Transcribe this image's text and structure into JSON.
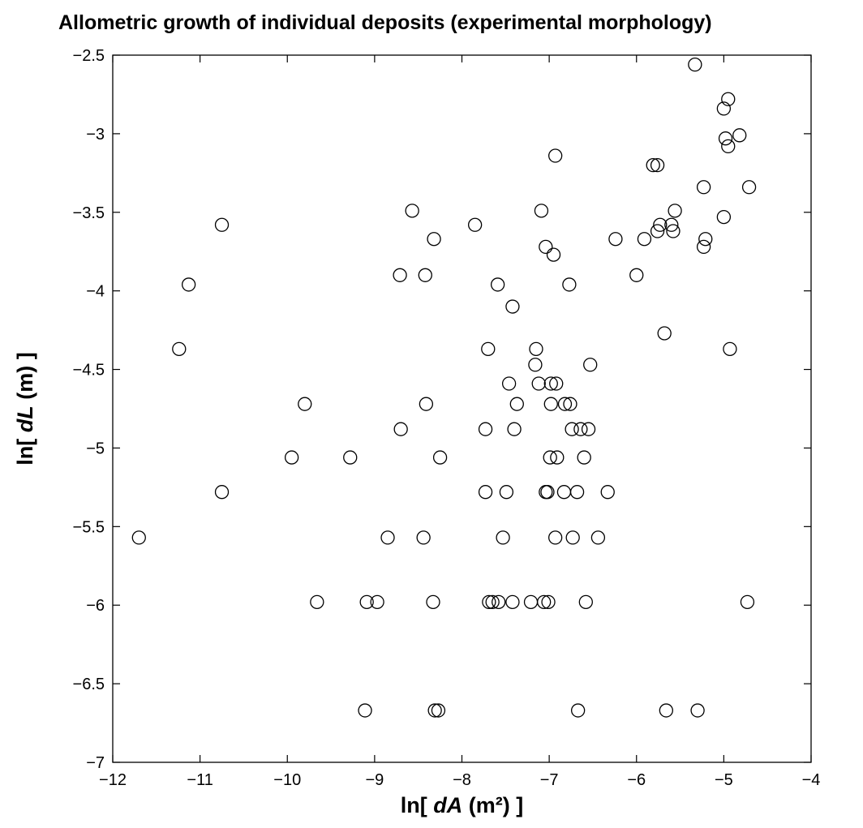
{
  "chart_data": {
    "type": "scatter",
    "title": "Allometric growth of individual deposits (experimental morphology)",
    "xlabel": {
      "prefix": "ln[ ",
      "var": "dA",
      "suffix": " (m²) ]"
    },
    "ylabel": {
      "prefix": "ln[ ",
      "var": "dL",
      "suffix": " (m) ]"
    },
    "xlim": [
      -12,
      -4
    ],
    "ylim": [
      -7,
      -2.5
    ],
    "xticks": [
      -12,
      -11,
      -10,
      -9,
      -8,
      -7,
      -6,
      -5,
      -4
    ],
    "xtick_labels": [
      "−12",
      "−11",
      "−10",
      "−9",
      "−8",
      "−7",
      "−6",
      "−5",
      "−4"
    ],
    "yticks": [
      -7,
      -6.5,
      -6,
      -5.5,
      -5,
      -4.5,
      -4,
      -3.5,
      -3,
      -2.5
    ],
    "ytick_labels": [
      "−7",
      "−6.5",
      "−6",
      "−5.5",
      "−5",
      "−4.5",
      "−4",
      "−3.5",
      "−3",
      "−2.5"
    ],
    "grid": false,
    "marker": "open-circle",
    "marker_color": "#000000",
    "points": [
      [
        -5.33,
        -2.56
      ],
      [
        -4.95,
        -2.78
      ],
      [
        -5.0,
        -2.84
      ],
      [
        -4.82,
        -3.01
      ],
      [
        -4.98,
        -3.03
      ],
      [
        -4.95,
        -3.08
      ],
      [
        -6.93,
        -3.14
      ],
      [
        -5.81,
        -3.2
      ],
      [
        -5.76,
        -3.2
      ],
      [
        -5.23,
        -3.34
      ],
      [
        -4.71,
        -3.34
      ],
      [
        -8.57,
        -3.49
      ],
      [
        -7.09,
        -3.49
      ],
      [
        -5.56,
        -3.49
      ],
      [
        -5.0,
        -3.53
      ],
      [
        -10.75,
        -3.58
      ],
      [
        -7.85,
        -3.58
      ],
      [
        -5.73,
        -3.58
      ],
      [
        -5.6,
        -3.58
      ],
      [
        -5.76,
        -3.62
      ],
      [
        -5.58,
        -3.62
      ],
      [
        -8.32,
        -3.67
      ],
      [
        -6.24,
        -3.67
      ],
      [
        -5.91,
        -3.67
      ],
      [
        -5.21,
        -3.67
      ],
      [
        -7.04,
        -3.72
      ],
      [
        -5.23,
        -3.72
      ],
      [
        -6.95,
        -3.77
      ],
      [
        -8.71,
        -3.9
      ],
      [
        -8.42,
        -3.9
      ],
      [
        -6.0,
        -3.9
      ],
      [
        -11.13,
        -3.96
      ],
      [
        -7.59,
        -3.96
      ],
      [
        -6.77,
        -3.96
      ],
      [
        -7.42,
        -4.1
      ],
      [
        -5.68,
        -4.27
      ],
      [
        -11.24,
        -4.37
      ],
      [
        -7.7,
        -4.37
      ],
      [
        -7.15,
        -4.37
      ],
      [
        -4.93,
        -4.37
      ],
      [
        -7.16,
        -4.47
      ],
      [
        -6.53,
        -4.47
      ],
      [
        -7.12,
        -4.59
      ],
      [
        -6.98,
        -4.59
      ],
      [
        -6.92,
        -4.59
      ],
      [
        -7.46,
        -4.59
      ],
      [
        -9.8,
        -4.72
      ],
      [
        -8.41,
        -4.72
      ],
      [
        -7.37,
        -4.72
      ],
      [
        -6.98,
        -4.72
      ],
      [
        -6.82,
        -4.72
      ],
      [
        -6.76,
        -4.72
      ],
      [
        -8.7,
        -4.88
      ],
      [
        -7.73,
        -4.88
      ],
      [
        -7.4,
        -4.88
      ],
      [
        -6.74,
        -4.88
      ],
      [
        -6.64,
        -4.88
      ],
      [
        -6.55,
        -4.88
      ],
      [
        -9.95,
        -5.06
      ],
      [
        -9.28,
        -5.06
      ],
      [
        -8.25,
        -5.06
      ],
      [
        -6.99,
        -5.06
      ],
      [
        -6.91,
        -5.06
      ],
      [
        -6.6,
        -5.06
      ],
      [
        -10.75,
        -5.28
      ],
      [
        -7.73,
        -5.28
      ],
      [
        -7.49,
        -5.28
      ],
      [
        -7.04,
        -5.28
      ],
      [
        -7.02,
        -5.28
      ],
      [
        -6.83,
        -5.28
      ],
      [
        -6.68,
        -5.28
      ],
      [
        -6.33,
        -5.28
      ],
      [
        -11.7,
        -5.57
      ],
      [
        -8.85,
        -5.57
      ],
      [
        -8.44,
        -5.57
      ],
      [
        -7.53,
        -5.57
      ],
      [
        -6.93,
        -5.57
      ],
      [
        -6.73,
        -5.57
      ],
      [
        -6.44,
        -5.57
      ],
      [
        -9.66,
        -5.98
      ],
      [
        -9.09,
        -5.98
      ],
      [
        -8.97,
        -5.98
      ],
      [
        -8.33,
        -5.98
      ],
      [
        -7.69,
        -5.98
      ],
      [
        -7.65,
        -5.98
      ],
      [
        -7.58,
        -5.98
      ],
      [
        -7.42,
        -5.98
      ],
      [
        -7.21,
        -5.98
      ],
      [
        -7.06,
        -5.98
      ],
      [
        -7.01,
        -5.98
      ],
      [
        -6.58,
        -5.98
      ],
      [
        -4.73,
        -5.98
      ],
      [
        -9.11,
        -6.67
      ],
      [
        -8.31,
        -6.67
      ],
      [
        -8.27,
        -6.67
      ],
      [
        -6.67,
        -6.67
      ],
      [
        -5.66,
        -6.67
      ],
      [
        -5.3,
        -6.67
      ]
    ]
  }
}
